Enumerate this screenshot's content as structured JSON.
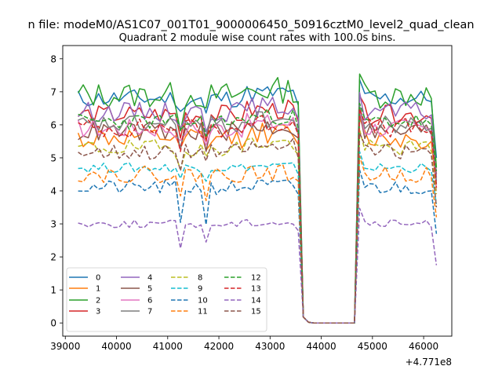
{
  "figure": {
    "suptitle": "n file: modeM0/AS1C07_001T01_9000006450_50916cztM0_level2_quad_clean",
    "offset_label": "+4.771e8"
  },
  "chart_data": {
    "type": "line",
    "title": "Quadrant 2 module wise count rates with 100.0s bins.",
    "xlabel": "",
    "ylabel": "",
    "x_offset": 477100000,
    "xlim": [
      38950,
      46550
    ],
    "ylim": [
      -0.4,
      8.4
    ],
    "x_ticks": [
      39000,
      40000,
      41000,
      42000,
      43000,
      44000,
      45000,
      46000
    ],
    "x_tick_labels": [
      "39000",
      "40000",
      "41000",
      "42000",
      "43000",
      "44000",
      "45000",
      "46000"
    ],
    "y_ticks": [
      0,
      1,
      2,
      3,
      4,
      5,
      6,
      7,
      8
    ],
    "y_tick_labels": [
      "0",
      "1",
      "2",
      "3",
      "4",
      "5",
      "6",
      "7",
      "8"
    ],
    "grid": false,
    "legend": {
      "placement": "lower-left",
      "columns": 4
    },
    "segments": [
      {
        "x_start": 39250,
        "x_end": 43550,
        "step": 100
      },
      {
        "x": [
          43650,
          43750,
          43850,
          43950,
          44050,
          44150,
          44250,
          44350,
          44450,
          44550,
          44650
        ]
      },
      {
        "x_start": 44750,
        "x_end": 46250,
        "step": 100
      }
    ],
    "series": [
      {
        "name": "0",
        "color": "#1f77b4",
        "dash": "solid",
        "base": 6.8,
        "noise": 0.28,
        "dip": 0.55,
        "seed": 11,
        "end": 5.0
      },
      {
        "name": "1",
        "color": "#ff7f0e",
        "dash": "solid",
        "base": 5.6,
        "noise": 0.32,
        "dip": 0.6,
        "seed": 12,
        "end": 4.1
      },
      {
        "name": "2",
        "color": "#2ca02c",
        "dash": "solid",
        "base": 6.9,
        "noise": 0.4,
        "dip": 0.8,
        "seed": 13,
        "end": 4.7
      },
      {
        "name": "3",
        "color": "#d62728",
        "dash": "solid",
        "base": 6.3,
        "noise": 0.3,
        "dip": 0.6,
        "seed": 14,
        "end": 4.5
      },
      {
        "name": "4",
        "color": "#9467bd",
        "dash": "solid",
        "base": 6.4,
        "noise": 0.3,
        "dip": 0.5,
        "seed": 15,
        "end": 4.4
      },
      {
        "name": "5",
        "color": "#8c564b",
        "dash": "solid",
        "base": 5.8,
        "noise": 0.3,
        "dip": 0.6,
        "seed": 16,
        "end": 4.2
      },
      {
        "name": "6",
        "color": "#e377c2",
        "dash": "solid",
        "base": 5.9,
        "noise": 0.3,
        "dip": 0.6,
        "seed": 17,
        "end": 4.0
      },
      {
        "name": "7",
        "color": "#7f7f7f",
        "dash": "solid",
        "base": 6.0,
        "noise": 0.28,
        "dip": 0.5,
        "seed": 18,
        "end": 4.3
      },
      {
        "name": "8",
        "color": "#bcbd22",
        "dash": "dashed",
        "base": 5.3,
        "noise": 0.25,
        "dip": 0.5,
        "seed": 19,
        "end": 3.9
      },
      {
        "name": "9",
        "color": "#17becf",
        "dash": "dashed",
        "base": 4.7,
        "noise": 0.15,
        "dip": 0.3,
        "seed": 20,
        "end": 3.6
      },
      {
        "name": "10",
        "color": "#1f77b4",
        "dash": "dashed",
        "base": 4.1,
        "noise": 0.22,
        "dip": 1.1,
        "seed": 21,
        "end": 2.7
      },
      {
        "name": "11",
        "color": "#ff7f0e",
        "dash": "dashed",
        "base": 4.5,
        "noise": 0.25,
        "dip": 0.8,
        "seed": 22,
        "end": 3.2
      },
      {
        "name": "12",
        "color": "#2ca02c",
        "dash": "dashed",
        "base": 6.1,
        "noise": 0.25,
        "dip": 0.5,
        "seed": 23,
        "end": 4.6
      },
      {
        "name": "13",
        "color": "#d62728",
        "dash": "dashed",
        "base": 5.9,
        "noise": 0.3,
        "dip": 0.5,
        "seed": 24,
        "end": 4.1
      },
      {
        "name": "14",
        "color": "#9467bd",
        "dash": "dashed",
        "base": 3.0,
        "noise": 0.12,
        "dip": 0.7,
        "seed": 25,
        "end": 1.75
      },
      {
        "name": "15",
        "color": "#8c564b",
        "dash": "dashed",
        "base": 5.2,
        "noise": 0.25,
        "dip": 0.6,
        "seed": 26,
        "end": 3.5
      }
    ]
  }
}
